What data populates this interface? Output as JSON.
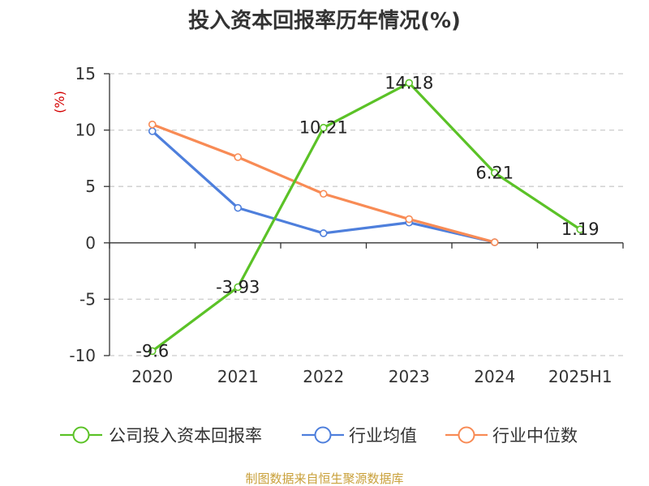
{
  "chart_data": {
    "type": "line",
    "title": "投入资本回报率历年情况(%)",
    "unit_label": "(%)",
    "categories": [
      "2020",
      "2021",
      "2022",
      "2023",
      "2024",
      "2025H1"
    ],
    "ylim": [
      -10,
      15
    ],
    "yticks": [
      "15",
      "10",
      "5",
      "0",
      "-5",
      "-10"
    ],
    "grid": true,
    "legend_position": "bottom",
    "series": [
      {
        "name": "公司投入资本回报率",
        "color": "#5bc227",
        "values": [
          -9.6,
          -3.93,
          10.21,
          14.18,
          6.21,
          1.19
        ],
        "labels": [
          "-9.6",
          "-3.93",
          "10.21",
          "14.18",
          "6.21",
          "1.19"
        ]
      },
      {
        "name": "行业均值",
        "color": "#4e7fdc",
        "values": [
          9.9,
          3.1,
          0.85,
          1.8,
          0.05,
          null
        ]
      },
      {
        "name": "行业中位数",
        "color": "#f88b55",
        "values": [
          10.5,
          7.6,
          4.35,
          2.1,
          0.05,
          null
        ]
      }
    ]
  },
  "footer": {
    "source": "制图数据来自恒生聚源数据库"
  }
}
